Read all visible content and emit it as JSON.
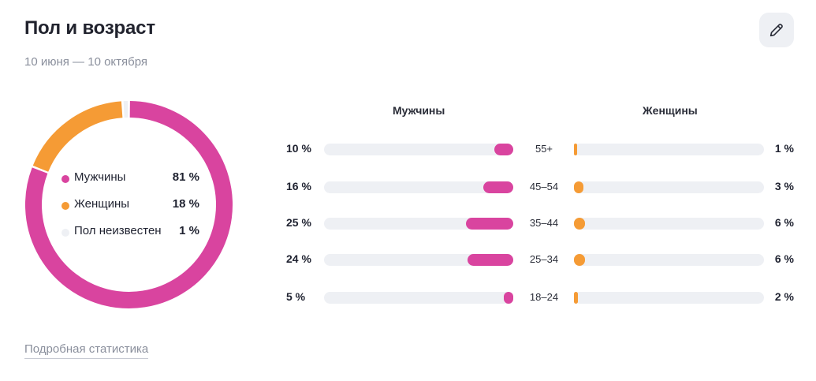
{
  "header": {
    "title": "Пол и возраст",
    "period": "10 июня — 10 октября",
    "edit_icon": "pencil-icon"
  },
  "columns": {
    "men": "Мужчины",
    "women": "Женщины"
  },
  "footer": {
    "details_link": "Подробная статистика"
  },
  "colors": {
    "men": "#d9449f",
    "women": "#f59b35",
    "unknown": "#eef0f4",
    "track": "#eef0f4"
  },
  "chart_data": [
    {
      "type": "pie",
      "donut": true,
      "slices": [
        {
          "name": "Мужчины",
          "value": 81,
          "label": "81 %"
        },
        {
          "name": "Женщины",
          "value": 18,
          "label": "18 %"
        },
        {
          "name": "Пол неизвестен",
          "value": 1,
          "label": "1 %"
        }
      ],
      "legend": "inside"
    },
    {
      "type": "bar",
      "orientation": "horizontal",
      "layout": "butterfly",
      "categories": [
        "55+",
        "45–54",
        "35–44",
        "25–34",
        "18–24"
      ],
      "series": [
        {
          "name": "Мужчины",
          "values": [
            10,
            16,
            25,
            24,
            5
          ],
          "labels": [
            "10 %",
            "16 %",
            "25 %",
            "24 %",
            "5 %"
          ]
        },
        {
          "name": "Женщины",
          "values": [
            1,
            3,
            6,
            6,
            2
          ],
          "labels": [
            "1 %",
            "3 %",
            "6 %",
            "6 %",
            "2 %"
          ]
        }
      ],
      "xlim": [
        0,
        100
      ]
    }
  ]
}
